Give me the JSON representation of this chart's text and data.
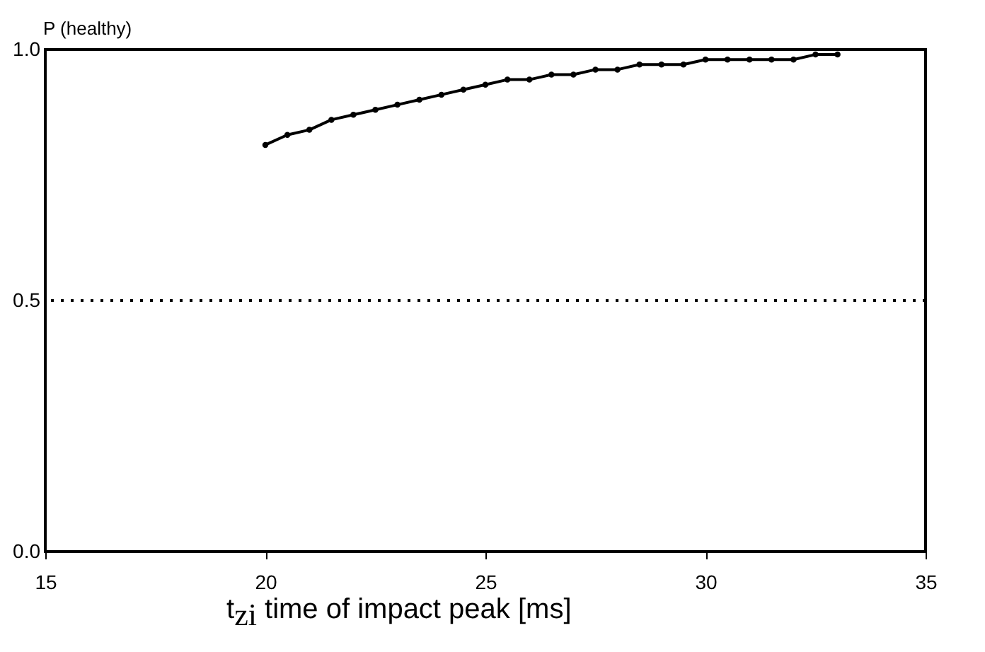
{
  "chart_data": {
    "type": "line",
    "xlabel": "t$_{zi}$  time of impact peak [ms]",
    "ylabel": "P (healthy)",
    "x": [
      20,
      20.5,
      21,
      21.5,
      22,
      22.5,
      23,
      23.5,
      24,
      24.5,
      25,
      25.5,
      26,
      26.5,
      27,
      27.5,
      28,
      28.5,
      29,
      29.5,
      30,
      30.5,
      31,
      31.5,
      32,
      32.5,
      33
    ],
    "series": [
      {
        "color": "#000000",
        "values": [
          0.81,
          0.83,
          0.84,
          0.86,
          0.87,
          0.88,
          0.89,
          0.9,
          0.91,
          0.92,
          0.93,
          0.94,
          0.94,
          0.95,
          0.95,
          0.96,
          0.96,
          0.97,
          0.97,
          0.97,
          0.98,
          0.98,
          0.98,
          0.98,
          0.98,
          0.99,
          0.99
        ]
      }
    ],
    "xlim": [
      15,
      35
    ],
    "xticks": [
      15,
      20,
      25,
      30,
      35
    ],
    "ylim": [
      0,
      1
    ],
    "yticks": [
      {
        "value": 0,
        "label": "0.0"
      },
      {
        "value": 0.5,
        "label": "0.5"
      },
      {
        "value": 1,
        "label": "1.0"
      }
    ],
    "ref_lines": [
      {
        "axis": "y",
        "value": 0.5,
        "line_style": "dotted",
        "color": "#000000"
      }
    ],
    "marker": "circle",
    "line_style": "solid"
  }
}
